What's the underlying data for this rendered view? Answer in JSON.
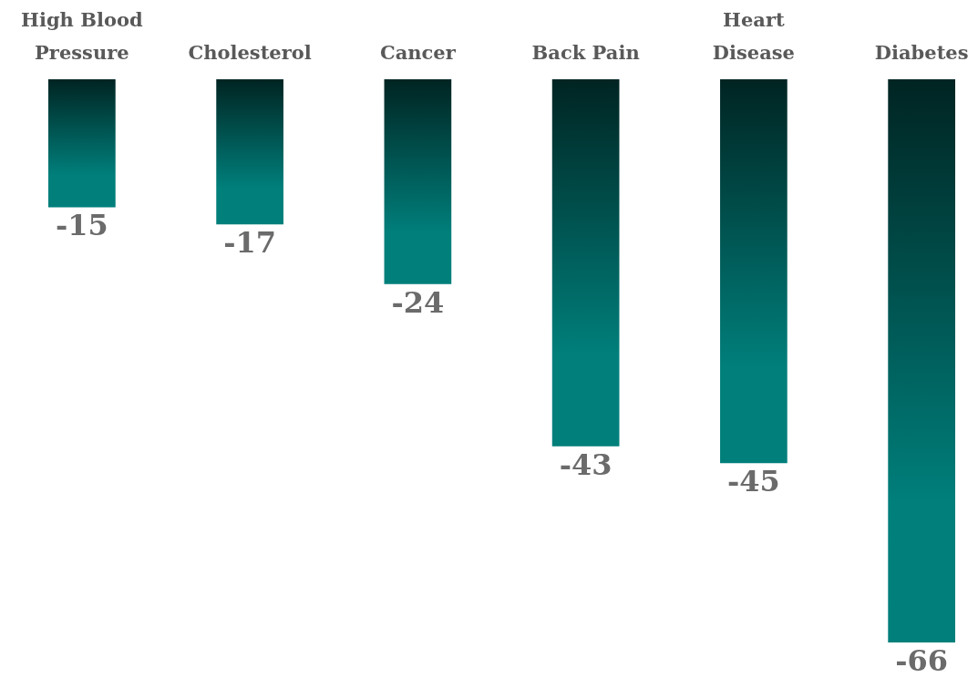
{
  "chart_data": {
    "type": "bar",
    "categories": [
      "High Blood Pressure",
      "Cholesterol",
      "Cancer",
      "Back Pain",
      "Heart Disease",
      "Diabetes"
    ],
    "values": [
      -15,
      -17,
      -24,
      -43,
      -45,
      -66
    ],
    "color": "#007f7b",
    "data_labels": true
  }
}
